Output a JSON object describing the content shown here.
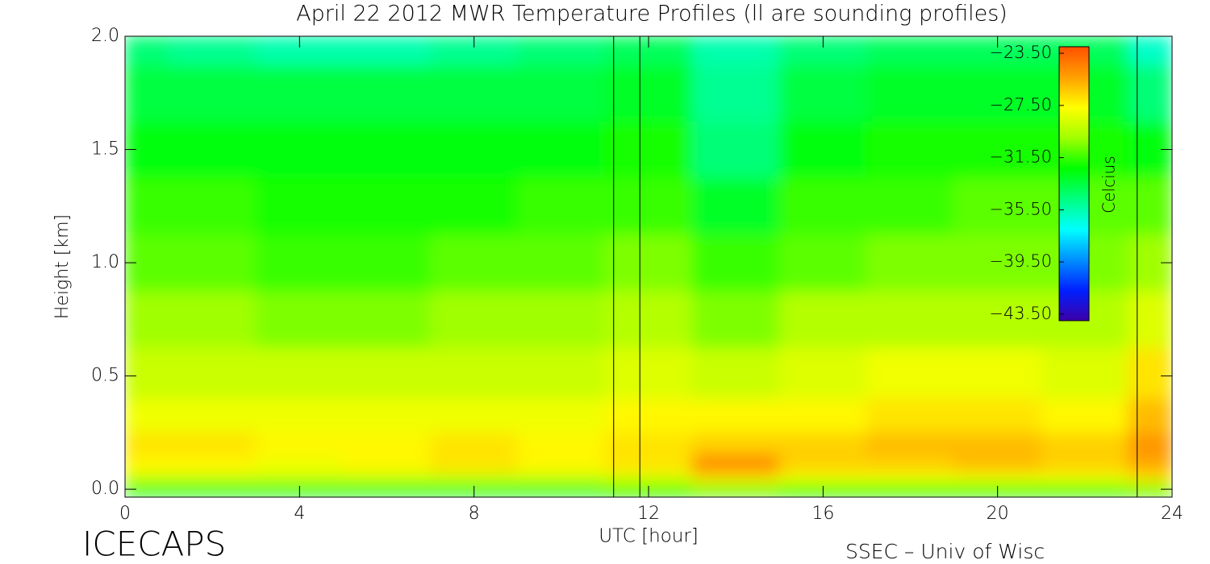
{
  "chart_data": {
    "type": "heatmap",
    "title": "April 22 2012 MWR Temperature Profiles (ll are sounding profiles)",
    "x_label": "UTC [hour]",
    "y_label": "Height [km]",
    "colorbar_label": "Celcius",
    "footer_left": "ICECAPS",
    "footer_right": "SSEC – Univ of Wisc",
    "x": [
      0,
      2,
      4,
      6,
      8,
      10,
      12,
      14,
      16,
      18,
      20,
      22,
      24
    ],
    "y": [
      0,
      0.05,
      0.1,
      0.2,
      0.3,
      0.5,
      0.75,
      1.0,
      1.25,
      1.5,
      1.75,
      2.0
    ],
    "z": [
      [
        -33,
        -33,
        -33,
        -33,
        -33,
        -33,
        -32,
        -31,
        -32,
        -32,
        -32,
        -32,
        -31
      ],
      [
        -29,
        -29,
        -29,
        -29,
        -29,
        -29,
        -28.5,
        -27,
        -28,
        -28,
        -28,
        -28,
        -27
      ],
      [
        -27.5,
        -27.5,
        -28,
        -27.5,
        -27,
        -27.5,
        -27,
        -24.5,
        -26.5,
        -26.5,
        -26,
        -26.5,
        -25.5
      ],
      [
        -27,
        -27,
        -27.5,
        -27.5,
        -27,
        -27.5,
        -27,
        -26.5,
        -26.5,
        -26,
        -26,
        -26.5,
        -25
      ],
      [
        -28,
        -28,
        -28,
        -28,
        -28,
        -28,
        -27.5,
        -27.5,
        -27.5,
        -27,
        -27,
        -27.5,
        -26
      ],
      [
        -29,
        -29,
        -29,
        -29,
        -29,
        -29,
        -28.5,
        -29,
        -28.5,
        -28,
        -28,
        -28.5,
        -27
      ],
      [
        -30,
        -30,
        -30.5,
        -30.5,
        -30,
        -30,
        -29.5,
        -30.5,
        -29.5,
        -29.5,
        -29.5,
        -29.5,
        -28.5
      ],
      [
        -31,
        -31,
        -31.5,
        -31.5,
        -31,
        -31,
        -30.5,
        -31.5,
        -31,
        -30.5,
        -30.5,
        -30.5,
        -30
      ],
      [
        -31.5,
        -31.5,
        -32,
        -32,
        -32,
        -31.5,
        -31.5,
        -33,
        -31.5,
        -31.5,
        -31,
        -31,
        -31
      ],
      [
        -32.5,
        -32.5,
        -32.5,
        -32.5,
        -32.5,
        -32.5,
        -32,
        -34.5,
        -32.5,
        -32,
        -32,
        -32,
        -32.5
      ],
      [
        -33.5,
        -33.5,
        -33.5,
        -33.5,
        -33.5,
        -33.5,
        -33,
        -35,
        -33.5,
        -33,
        -33,
        -33,
        -34.5
      ],
      [
        -34.5,
        -35,
        -35.5,
        -35.5,
        -35,
        -34.5,
        -34,
        -35.5,
        -34.5,
        -34,
        -34,
        -34,
        -36
      ]
    ],
    "sounding_lines_x": [
      11.2,
      11.8,
      23.2
    ],
    "xlim": [
      0,
      24
    ],
    "ylim": [
      -0.035,
      2.0
    ],
    "xticks": [
      0,
      4,
      8,
      12,
      16,
      20,
      24
    ],
    "yticks": [
      {
        "value": 0,
        "label": "0.0"
      },
      0.5,
      {
        "value": 1.0,
        "label": "1.0"
      },
      1.5,
      {
        "value": 2.0,
        "label": "2.0"
      }
    ],
    "clim": [
      -44,
      -23
    ],
    "cticks": [
      {
        "value": -23.5,
        "label": "−23.50"
      },
      {
        "value": -27.5,
        "label": "−27.50"
      },
      {
        "value": -31.5,
        "label": "−31.50"
      },
      {
        "value": -35.5,
        "label": "−35.50"
      },
      {
        "value": -39.5,
        "label": "−39.50"
      },
      {
        "value": -43.5,
        "label": "−43.50"
      }
    ],
    "colormap": [
      "#3c00a8",
      "#0020ff",
      "#0090ff",
      "#00ffff",
      "#00ff80",
      "#00ff00",
      "#a0ff00",
      "#ffff00",
      "#ffa000",
      "#ff5000"
    ]
  }
}
